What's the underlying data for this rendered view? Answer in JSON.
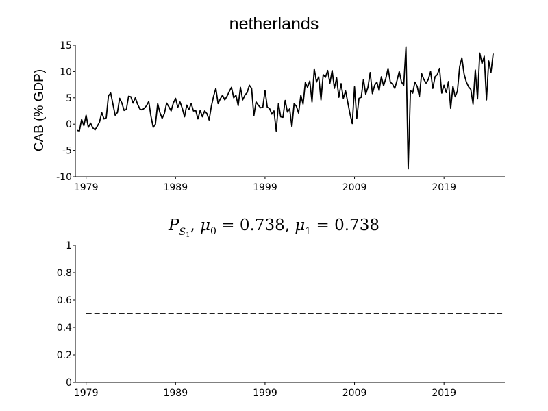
{
  "chart_data": [
    {
      "type": "line",
      "title": "netherlands",
      "xlabel": "",
      "ylabel": "CAB (% GDP)",
      "xlim": [
        1977.8,
        2025.8
      ],
      "ylim": [
        -10,
        15
      ],
      "x_ticks": [
        1979,
        1989,
        1999,
        2009,
        2019
      ],
      "y_ticks": [
        -10,
        -5,
        0,
        5,
        10,
        15
      ],
      "grid": false,
      "series": [
        {
          "start_year": 1978.0,
          "step": 0.25,
          "values": [
            -1.2,
            -1.3,
            0.9,
            -0.3,
            1.7,
            -0.6,
            0.2,
            -0.7,
            -1.1,
            -0.4,
            0.4,
            2.2,
            1.0,
            1.2,
            5.4,
            5.9,
            3.8,
            1.7,
            2.2,
            4.9,
            4.0,
            2.6,
            2.8,
            5.3,
            5.2,
            4.0,
            5.0,
            3.8,
            2.9,
            2.7,
            3.0,
            3.5,
            4.3,
            1.5,
            -0.6,
            0.0,
            3.9,
            2.2,
            1.1,
            2.0,
            4.0,
            3.3,
            2.5,
            4.0,
            4.9,
            3.2,
            4.2,
            3.0,
            1.4,
            3.6,
            2.8,
            3.9,
            2.5,
            2.6,
            1.0,
            2.6,
            1.4,
            2.5,
            2.0,
            0.8,
            3.4,
            5.3,
            6.8,
            3.9,
            4.8,
            5.5,
            4.6,
            5.3,
            6.2,
            7.0,
            5.0,
            5.5,
            3.5,
            7.0,
            4.6,
            5.5,
            6.0,
            7.4,
            6.8,
            1.6,
            4.2,
            3.6,
            3.1,
            3.2,
            6.4,
            3.2,
            3.0,
            1.9,
            2.5,
            -1.3,
            3.9,
            1.4,
            1.3,
            4.5,
            2.3,
            2.9,
            -0.5,
            3.9,
            3.4,
            2.1,
            5.5,
            3.8,
            7.9,
            7.0,
            8.2,
            4.2,
            10.5,
            8.0,
            9.0,
            4.6,
            9.4,
            8.9,
            10.2,
            7.8,
            10.2,
            6.8,
            8.8,
            5.1,
            7.7,
            4.9,
            6.3,
            4.1,
            1.9,
            0.1,
            7.1,
            1.1,
            4.9,
            5.1,
            8.5,
            5.7,
            7.0,
            9.8,
            5.8,
            7.4,
            8.0,
            6.4,
            9.0,
            7.3,
            8.7,
            10.6,
            8.0,
            7.6,
            6.8,
            8.3,
            10.0,
            8.0,
            7.4,
            14.7,
            -8.5,
            6.4,
            5.9,
            8.0,
            7.2,
            5.2,
            9.6,
            8.5,
            7.8,
            8.5,
            10.0,
            6.8,
            9.0,
            9.4,
            10.6,
            5.9,
            7.4,
            6.0,
            8.1,
            3.0,
            7.2,
            5.2,
            6.3,
            10.9,
            12.6,
            9.5,
            8.0,
            7.1,
            6.6,
            3.8,
            10.3,
            4.8,
            13.5,
            11.5,
            12.9,
            4.6,
            12.0,
            9.8,
            13.4
          ]
        }
      ]
    },
    {
      "type": "line",
      "title": "P_{S_1}, μ_0 = 0.738, μ_1 = 0.738",
      "title_parts": {
        "P": "P",
        "S": "S",
        "one": "1",
        "mu": "μ",
        "sub0": "0",
        "sub1": "1",
        "eq_val0": " = 0.738,",
        "eq_val1": " = 0.738"
      },
      "xlabel": "",
      "ylabel": "",
      "xlim": [
        1977.8,
        2025.8
      ],
      "ylim": [
        0,
        1
      ],
      "x_ticks": [
        1979,
        1989,
        1999,
        2009,
        2019
      ],
      "y_ticks": [
        0,
        0.2,
        0.4,
        0.6,
        0.8,
        1
      ],
      "y_tick_labels": [
        "0",
        "0.2",
        "0.4",
        "0.6",
        "0.8",
        "1"
      ],
      "grid": false,
      "series": [
        {
          "style": "dashed",
          "x": [
            1979,
            2025.5
          ],
          "values": [
            0.5,
            0.5
          ]
        }
      ]
    }
  ]
}
